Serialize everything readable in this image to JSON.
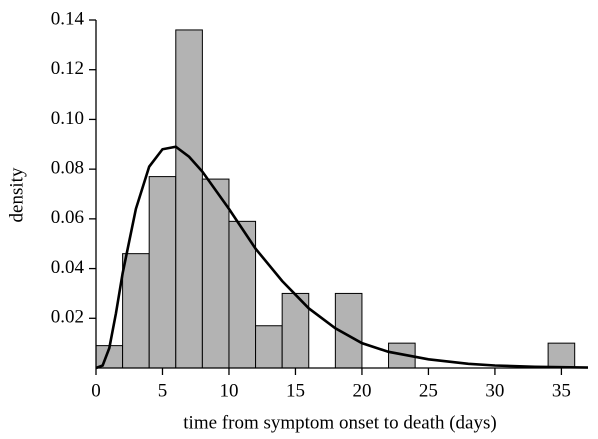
{
  "chart_data": {
    "type": "histogram",
    "xlabel": "time from symptom onset to death (days)",
    "ylabel": "density",
    "bins": [
      0,
      2,
      4,
      6,
      8,
      10,
      12,
      14,
      16,
      18,
      20,
      22,
      24,
      26,
      28,
      30,
      32,
      34,
      36
    ],
    "values": [
      0.009,
      0.046,
      0.077,
      0.136,
      0.076,
      0.059,
      0.017,
      0.03,
      0,
      0.03,
      0,
      0.01,
      0,
      0,
      0,
      0,
      0,
      0.01
    ],
    "color": "#b3b3b3",
    "edgecolor": "#000000",
    "xlim": [
      0,
      37
    ],
    "ylim": [
      0,
      0.14
    ],
    "xticks": [
      0,
      5,
      10,
      15,
      20,
      25,
      30,
      35
    ],
    "yticks": [
      0.02,
      0.04,
      0.06,
      0.08,
      {
        "value": 0.1,
        "label": "0.10"
      },
      0.12,
      0.14
    ],
    "grid": false,
    "overlay": {
      "type": "line",
      "color": "#000000",
      "x": [
        0,
        0.5,
        1,
        1.5,
        2,
        3,
        4,
        5,
        6,
        7,
        8,
        10,
        12,
        14,
        16,
        18,
        20,
        22,
        25,
        28,
        30,
        33,
        37
      ],
      "values": [
        0,
        0.001,
        0.008,
        0.022,
        0.038,
        0.064,
        0.081,
        0.088,
        0.089,
        0.085,
        0.079,
        0.064,
        0.048,
        0.035,
        0.024,
        0.016,
        0.01,
        0.0065,
        0.0035,
        0.0017,
        0.001,
        0.0005,
        0.0002
      ]
    }
  }
}
